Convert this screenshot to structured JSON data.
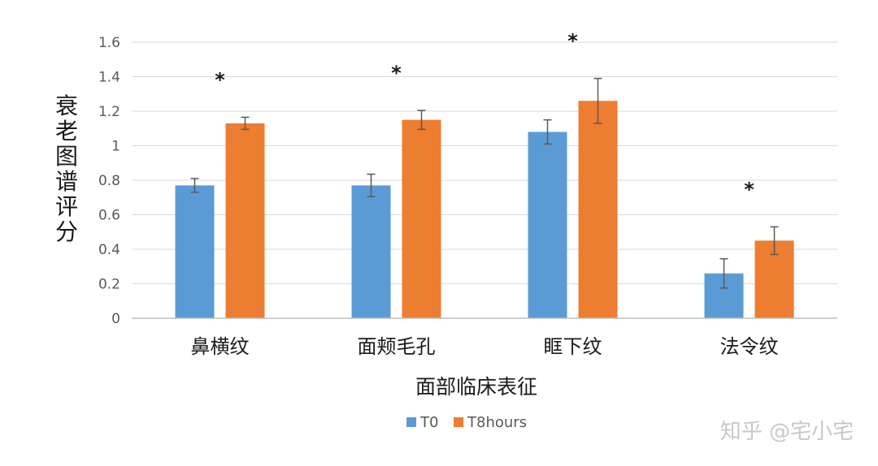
{
  "chart_data": {
    "type": "bar",
    "categories": [
      "鼻横纹",
      "面颊毛孔",
      "眶下纹",
      "法令纹"
    ],
    "series": [
      {
        "name": "T0",
        "color": "#5b9bd5",
        "values": [
          0.77,
          0.77,
          1.08,
          0.26
        ],
        "errors": [
          0.04,
          0.065,
          0.07,
          0.085
        ]
      },
      {
        "name": "T8hours",
        "color": "#ed7d31",
        "values": [
          1.13,
          1.15,
          1.26,
          0.45
        ],
        "errors": [
          0.035,
          0.055,
          0.13,
          0.08
        ]
      }
    ],
    "significance": [
      "*",
      "*",
      "*",
      "*"
    ],
    "xlabel": "面部临床表征",
    "ylabel": "衰老图谱评分",
    "ylim": [
      0,
      1.6
    ],
    "yticks": [
      "0",
      "0.2",
      "0.4",
      "0.6",
      "0.8",
      "1",
      "1.2",
      "1.4",
      "1.6"
    ],
    "grid": true,
    "legend_position": "bottom"
  },
  "watermark": "知乎 @宅小宅"
}
